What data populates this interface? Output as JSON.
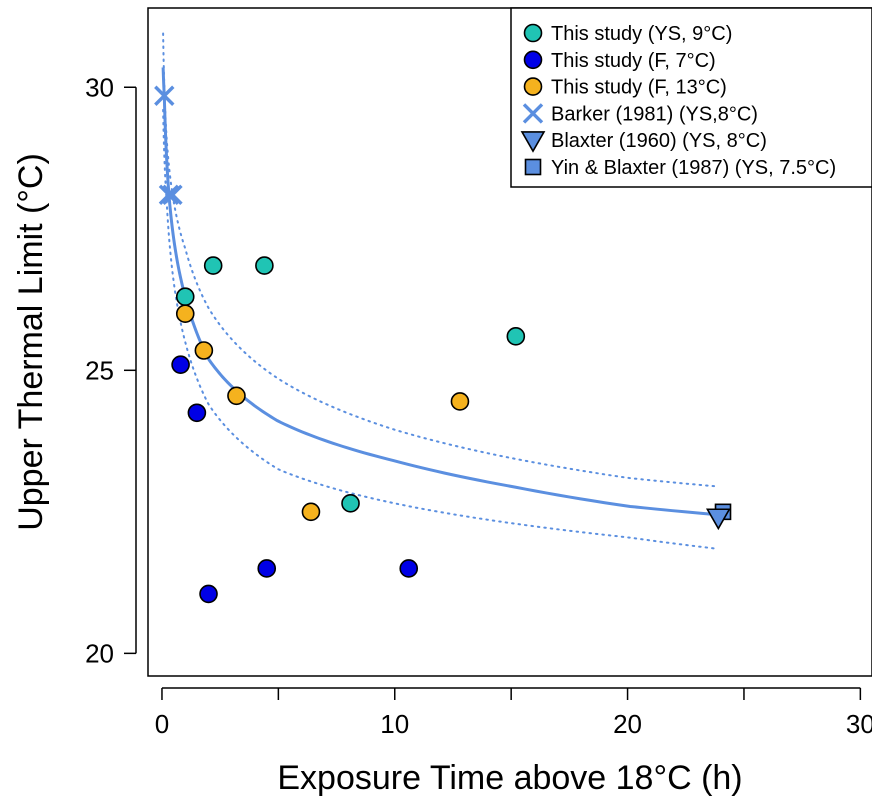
{
  "chart_data": {
    "type": "scatter",
    "title": "",
    "xlabel": "Exposure Time above 18°C (h)",
    "ylabel": "Upper Thermal Limit (°C)",
    "xlim": [
      -0.6,
      30.5
    ],
    "ylim": [
      19.6,
      31.4
    ],
    "x_ticks": [
      0,
      5,
      10,
      15,
      20,
      25,
      30
    ],
    "x_tick_labels": [
      "0",
      "",
      "10",
      "",
      "20",
      "",
      "30"
    ],
    "y_ticks": [
      20,
      25,
      30
    ],
    "y_tick_labels": [
      "20",
      "25",
      "30"
    ],
    "grid": false,
    "legend_position": "top-right",
    "series": [
      {
        "name": "This study (YS, 9°C)",
        "marker": "circle",
        "color": "#20c4b4",
        "points": [
          [
            2.2,
            26.85
          ],
          [
            4.4,
            26.85
          ],
          [
            1.0,
            26.3
          ],
          [
            8.1,
            22.65
          ],
          [
            15.2,
            25.6
          ]
        ]
      },
      {
        "name": "This study (F, 7°C)",
        "marker": "circle",
        "color": "#0000e6",
        "points": [
          [
            0.8,
            25.1
          ],
          [
            1.5,
            24.25
          ],
          [
            2.0,
            21.05
          ],
          [
            4.5,
            21.5
          ],
          [
            10.6,
            21.5
          ]
        ]
      },
      {
        "name": "This study (F, 13°C)",
        "marker": "circle",
        "color": "#f5b21e",
        "points": [
          [
            1.0,
            26.0
          ],
          [
            1.8,
            25.35
          ],
          [
            3.2,
            24.55
          ],
          [
            6.4,
            22.5
          ],
          [
            12.8,
            24.45
          ]
        ]
      },
      {
        "name": "Barker (1981) (YS,8°C)",
        "marker": "x",
        "color": "#5b8fe0",
        "points": [
          [
            0.1,
            29.85
          ],
          [
            0.3,
            28.1
          ],
          [
            0.45,
            28.1
          ]
        ]
      },
      {
        "name": "Blaxter (1960) (YS, 8°C)",
        "marker": "triangle-down",
        "color": "#5b8fe0",
        "points": [
          [
            23.9,
            22.4
          ]
        ]
      },
      {
        "name": "Yin & Blaxter (1987) (YS, 7.5°C)",
        "marker": "square",
        "color": "#5b8fe0",
        "points": [
          [
            24.1,
            22.5
          ]
        ]
      }
    ],
    "fit_curve": {
      "color": "#5b8fe0",
      "x_range": [
        0.05,
        23.8
      ],
      "fit_points": [
        [
          0.05,
          30.35
        ],
        [
          0.1,
          29.85
        ],
        [
          0.3,
          28.1
        ],
        [
          1.0,
          26.3
        ],
        [
          2.0,
          25.2
        ],
        [
          5.0,
          24.1
        ],
        [
          10.0,
          23.4
        ],
        [
          15.0,
          22.95
        ],
        [
          20.0,
          22.6
        ],
        [
          23.8,
          22.45
        ]
      ],
      "band_upper": [
        [
          0.05,
          30.95
        ],
        [
          0.2,
          29.1
        ],
        [
          1.0,
          27.15
        ],
        [
          2.0,
          26.1
        ],
        [
          5.0,
          24.85
        ],
        [
          10.0,
          23.95
        ],
        [
          15.0,
          23.45
        ],
        [
          20.0,
          23.1
        ],
        [
          23.8,
          22.95
        ]
      ],
      "band_lower": [
        [
          0.05,
          29.6
        ],
        [
          0.2,
          28.0
        ],
        [
          1.0,
          25.5
        ],
        [
          2.0,
          24.4
        ],
        [
          5.0,
          23.25
        ],
        [
          10.0,
          22.65
        ],
        [
          15.0,
          22.3
        ],
        [
          20.0,
          22.05
        ],
        [
          23.8,
          21.85
        ]
      ]
    }
  }
}
